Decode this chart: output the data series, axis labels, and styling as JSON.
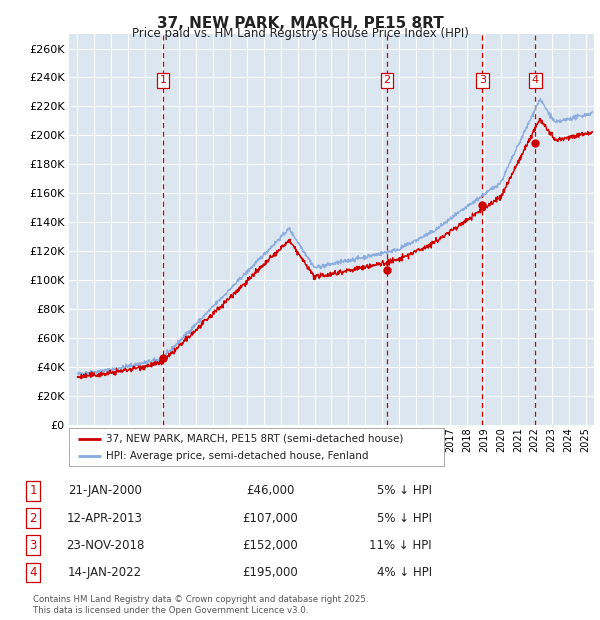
{
  "title": "37, NEW PARK, MARCH, PE15 8RT",
  "subtitle": "Price paid vs. HM Land Registry's House Price Index (HPI)",
  "legend_line1": "37, NEW PARK, MARCH, PE15 8RT (semi-detached house)",
  "legend_line2": "HPI: Average price, semi-detached house, Fenland",
  "footer1": "Contains HM Land Registry data © Crown copyright and database right 2025.",
  "footer2": "This data is licensed under the Open Government Licence v3.0.",
  "transactions": [
    {
      "num": 1,
      "date": "21-JAN-2000",
      "price": "£46,000",
      "pct": "5% ↓ HPI",
      "year": 2000.05
    },
    {
      "num": 2,
      "date": "12-APR-2013",
      "price": "£107,000",
      "pct": "5% ↓ HPI",
      "year": 2013.28
    },
    {
      "num": 3,
      "date": "23-NOV-2018",
      "price": "£152,000",
      "pct": "11% ↓ HPI",
      "year": 2018.9
    },
    {
      "num": 4,
      "date": "14-JAN-2022",
      "price": "£195,000",
      "pct": "4% ↓ HPI",
      "year": 2022.04
    }
  ],
  "sale_prices": [
    46000,
    107000,
    152000,
    195000
  ],
  "sale_years": [
    2000.05,
    2013.28,
    2018.9,
    2022.04
  ],
  "ylim": [
    0,
    270000
  ],
  "xlim": [
    1994.5,
    2025.5
  ],
  "plot_bg_color": "#dce6f1",
  "grid_color": "#ffffff",
  "line_color_prop": "#cc0000",
  "line_color_hpi": "#88aadd",
  "vline_color": "#cc0000",
  "marker_sale_color": "#cc0000"
}
